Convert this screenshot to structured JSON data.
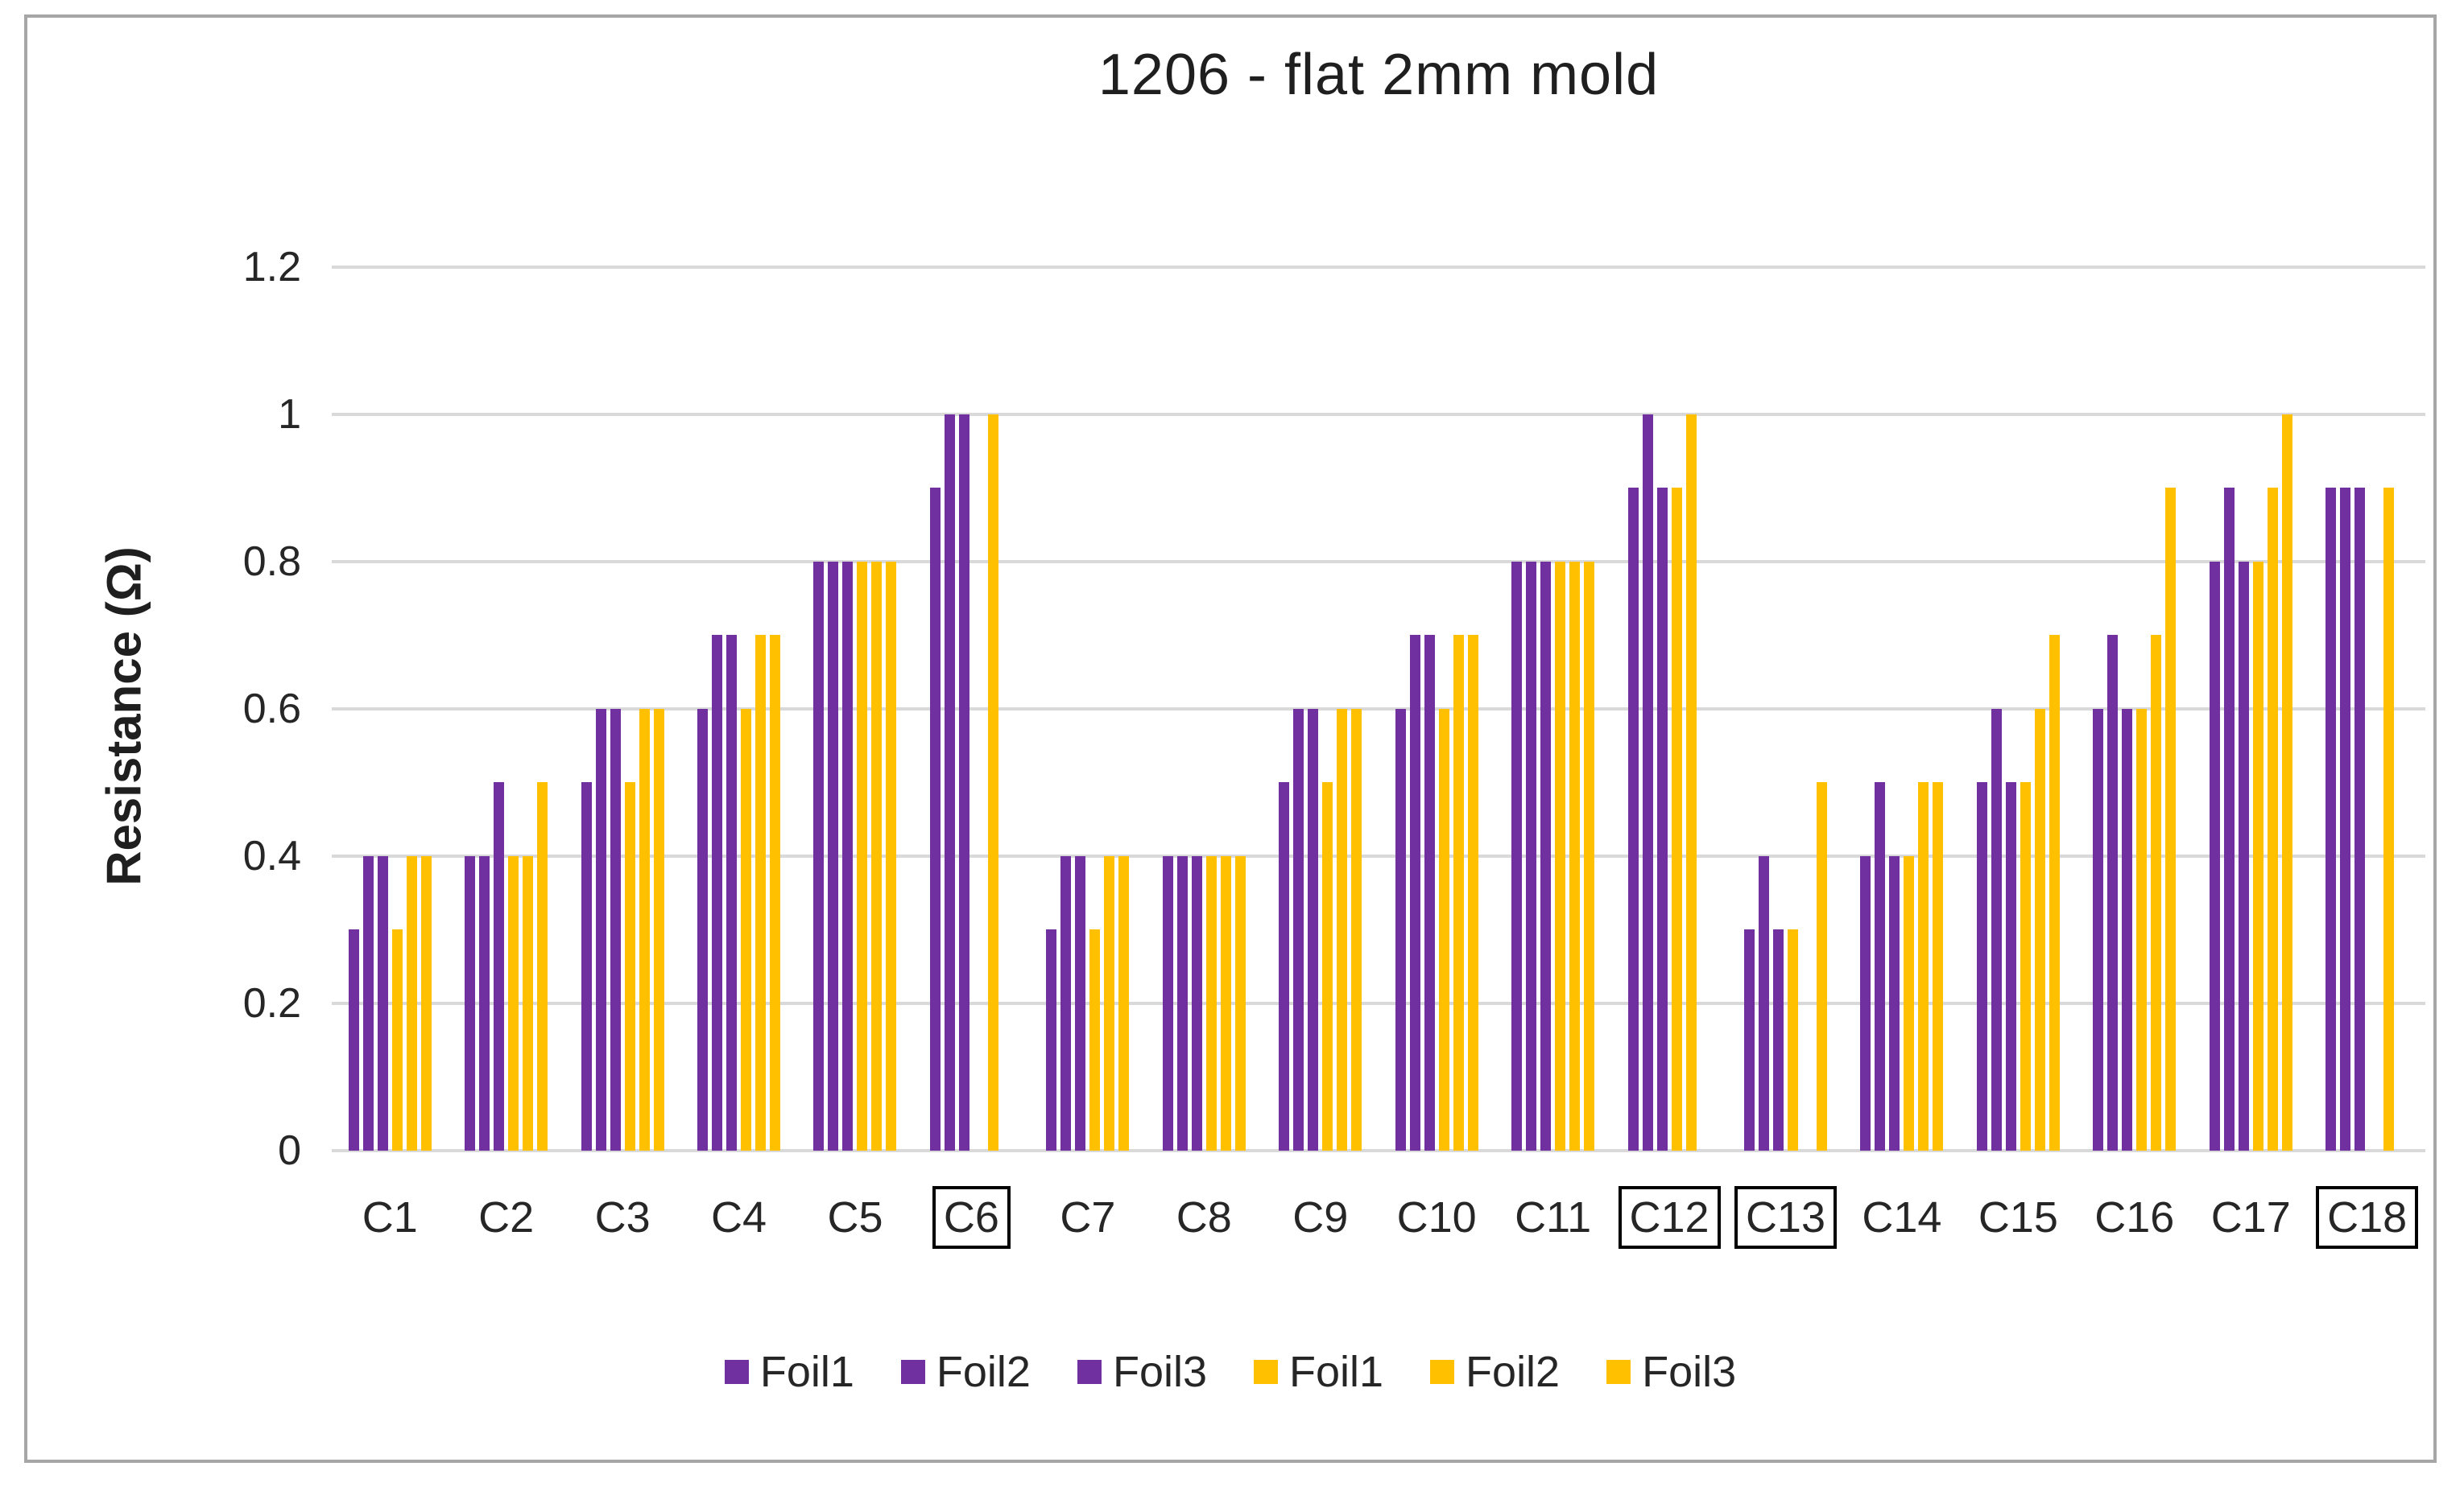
{
  "chart_data": {
    "type": "bar",
    "title": "1206 - flat 2mm mold",
    "xlabel": "",
    "ylabel": "Resistance (Ω)",
    "ylim": [
      0,
      1.2
    ],
    "y_tick_step": 0.2,
    "y_ticks": [
      "1.2",
      "1",
      "0.8",
      "0.6",
      "0.4",
      "0.2",
      "0"
    ],
    "grid": true,
    "legend_position": "bottom",
    "categories": [
      "C1",
      "C2",
      "C3",
      "C4",
      "C5",
      "C6",
      "C7",
      "C8",
      "C9",
      "C10",
      "C11",
      "C12",
      "C13",
      "C14",
      "C15",
      "C16",
      "C17",
      "C18"
    ],
    "boxed_categories": [
      "C6",
      "C12",
      "C13",
      "C18"
    ],
    "colors": {
      "purple": "#7030A0",
      "yellow": "#FFC000",
      "gridline": "#D9D9D9",
      "frame_border": "#A6A6A6",
      "text": "#262626"
    },
    "series": [
      {
        "name": "Foil1",
        "group": "purple",
        "color": "#7030A0",
        "values": [
          0.3,
          0.4,
          0.5,
          0.6,
          0.8,
          0.9,
          0.3,
          0.4,
          0.5,
          0.6,
          0.8,
          0.9,
          0.3,
          0.4,
          0.5,
          0.6,
          0.8,
          0.9
        ]
      },
      {
        "name": "Foil2",
        "group": "purple",
        "color": "#7030A0",
        "values": [
          0.4,
          0.4,
          0.6,
          0.7,
          0.8,
          1.0,
          0.4,
          0.4,
          0.6,
          0.7,
          0.8,
          1.0,
          0.4,
          0.5,
          0.6,
          0.7,
          0.9,
          0.9
        ]
      },
      {
        "name": "Foil3",
        "group": "purple",
        "color": "#7030A0",
        "values": [
          0.4,
          0.5,
          0.6,
          0.7,
          0.8,
          1.0,
          0.4,
          0.4,
          0.6,
          0.7,
          0.8,
          0.9,
          0.3,
          0.4,
          0.5,
          0.6,
          0.8,
          0.9
        ]
      },
      {
        "name": "Foil1",
        "group": "yellow",
        "color": "#FFC000",
        "values": [
          0.3,
          0.4,
          0.5,
          0.6,
          0.8,
          0,
          0.3,
          0.4,
          0.5,
          0.6,
          0.8,
          0.9,
          0.3,
          0.4,
          0.5,
          0.6,
          0.8,
          0
        ]
      },
      {
        "name": "Foil2",
        "group": "yellow",
        "color": "#FFC000",
        "values": [
          0.4,
          0.4,
          0.6,
          0.7,
          0.8,
          1.0,
          0.4,
          0.4,
          0.6,
          0.7,
          0.8,
          1.0,
          0,
          0.5,
          0.6,
          0.7,
          0.9,
          0.9
        ]
      },
      {
        "name": "Foil3",
        "group": "yellow",
        "color": "#FFC000",
        "values": [
          0.4,
          0.5,
          0.6,
          0.7,
          0.8,
          0,
          0.4,
          0.4,
          0.6,
          0.7,
          0.8,
          0,
          0.5,
          0.5,
          0.7,
          0.9,
          1.0,
          0
        ]
      }
    ]
  }
}
